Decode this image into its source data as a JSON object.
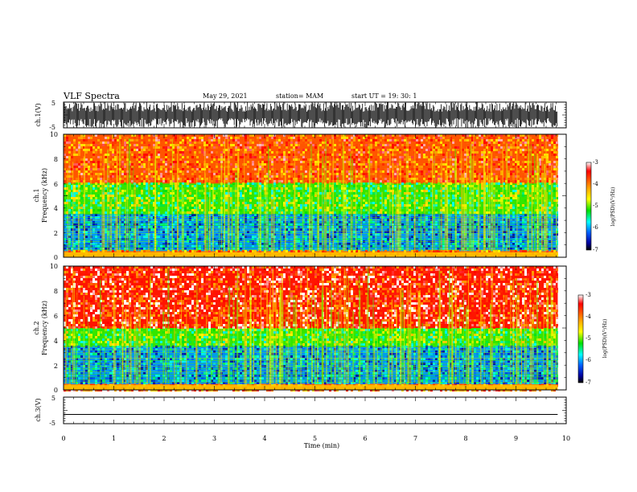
{
  "header": {
    "title": "VLF Spectra",
    "date": "May 29, 2021",
    "station": "station= MAM",
    "start": "start  UT  =   19: 30: 1"
  },
  "x_axis": {
    "label": "Time  (min)",
    "ticks": [
      "0",
      "1",
      "2",
      "3",
      "4",
      "5",
      "6",
      "7",
      "8",
      "9",
      "10"
    ]
  },
  "panels": {
    "ch1_wave": {
      "label": "ch.1(V)",
      "ticks": [
        "5",
        "-5"
      ]
    },
    "ch1_spec": {
      "label_line1": "ch.1",
      "label_line2": "Frequency  (kHz)",
      "ticks": [
        "10",
        "8",
        "6",
        "4",
        "2",
        "0"
      ]
    },
    "ch2_spec": {
      "label_line1": "ch.2",
      "label_line2": "Frequency  (kHz)",
      "ticks": [
        "10",
        "8",
        "6",
        "4",
        "2",
        "0"
      ]
    },
    "ch3_wave": {
      "label": "ch.3(V)",
      "ticks": [
        "5",
        "-5"
      ]
    }
  },
  "colorbar": {
    "label": "log(PSD)(V²/Hz)",
    "ticks": [
      "-3",
      "-4",
      "-5",
      "-6",
      "-7"
    ],
    "colors": [
      "#ffffff",
      "#ff0000",
      "#ffaa00",
      "#ffff00",
      "#00e000",
      "#00ffff",
      "#0060ff",
      "#0000a0",
      "#000000"
    ]
  },
  "chart_data": [
    {
      "type": "line",
      "title": "",
      "series": [
        {
          "name": "ch.1(V)",
          "description_values": "dense broadband noise waveform, amplitude between -5 and 5"
        }
      ],
      "xlabel": "",
      "ylabel": "ch.1(V)",
      "xlim": [
        0,
        10
      ],
      "ylim": [
        -5,
        5
      ]
    },
    {
      "type": "heatmap",
      "title": "VLF Spectra",
      "xlabel": "Time  (min)",
      "ylabel": "Frequency  (kHz)",
      "xlim": [
        0,
        9.83
      ],
      "ylim": [
        0,
        10
      ],
      "color_scale": {
        "label": "log(PSD)(V²/Hz)",
        "range": [
          -7,
          -3
        ]
      },
      "band_levels": [
        {
          "freq_khz": [
            0,
            0.5
          ],
          "log_psd": -4
        },
        {
          "freq_khz": [
            0.5,
            3.5
          ],
          "log_psd": -6
        },
        {
          "freq_khz": [
            3.5,
            6
          ],
          "log_psd": -5
        },
        {
          "freq_khz": [
            6,
            10
          ],
          "log_psd": -3.8
        }
      ]
    },
    {
      "type": "heatmap",
      "title": "",
      "xlabel": "Time  (min)",
      "ylabel": "Frequency  (kHz)",
      "xlim": [
        0,
        9.83
      ],
      "ylim": [
        0,
        10
      ],
      "color_scale": {
        "label": "log(PSD)(V²/Hz)",
        "range": [
          -7,
          -3
        ]
      },
      "band_levels": [
        {
          "freq_khz": [
            0,
            0.5
          ],
          "log_psd": -4
        },
        {
          "freq_khz": [
            0.5,
            3.5
          ],
          "log_psd": -6
        },
        {
          "freq_khz": [
            3.5,
            5
          ],
          "log_psd": -5
        },
        {
          "freq_khz": [
            5,
            10
          ],
          "log_psd": -3.5
        }
      ]
    },
    {
      "type": "line",
      "title": "",
      "series": [
        {
          "name": "ch.3(V)",
          "values": [
            -1.5,
            -1.5
          ]
        }
      ],
      "x": [
        0,
        9.83
      ],
      "xlabel": "Time  (min)",
      "ylabel": "ch.3(V)",
      "xlim": [
        0,
        10
      ],
      "ylim": [
        -5,
        5
      ]
    }
  ]
}
